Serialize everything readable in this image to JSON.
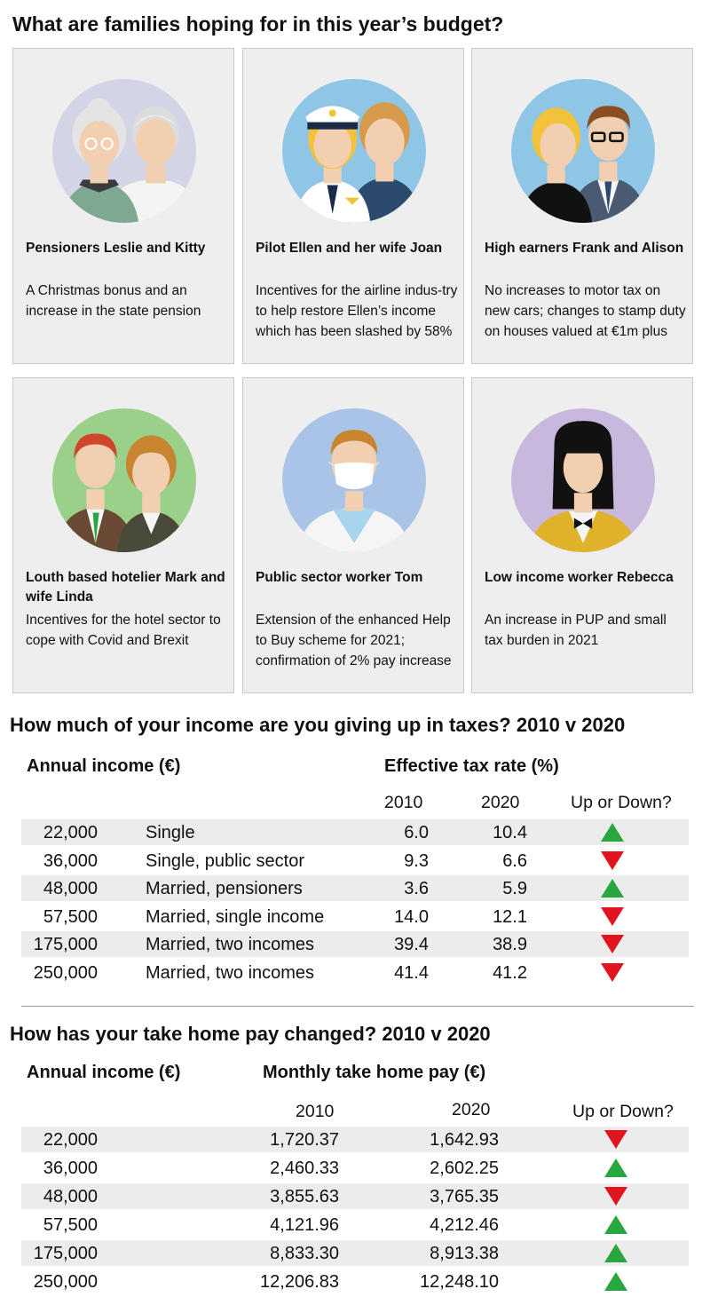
{
  "title": "What are families hoping for in this year’s budget?",
  "families": [
    {
      "name": "Pensioners Leslie and Kitty",
      "desc": "A Christmas bonus and an increase in the state pension"
    },
    {
      "name": "Pilot Ellen and her wife Joan",
      "desc": "Incentives for the airline indus-try to help restore Ellen’s income which has been slashed by 58%"
    },
    {
      "name": "High earners Frank and Alison",
      "desc": "No increases to motor tax on new cars; changes to stamp duty on houses valued at €1m plus"
    },
    {
      "name": "Louth based hotelier Mark and wife Linda",
      "desc": "Incentives for the hotel sector to cope with Covid and Brexit"
    },
    {
      "name": "Public sector worker Tom",
      "desc": "Extension of the enhanced Help to Buy scheme for 2021; confirmation of 2% pay increase"
    },
    {
      "name": "Low income worker Rebecca",
      "desc": "An increase in PUP and small tax burden in 2021"
    }
  ],
  "tax_table": {
    "title": "How much of your income are you giving up in taxes? 2010 v 2020",
    "col_income": "Annual income (€)",
    "col_rate": "Effective tax rate (%)",
    "year1": "2010",
    "year2": "2020",
    "col_trend": "Up or Down?",
    "rows": [
      {
        "income": "22,000",
        "type": "Single",
        "y2010": "6.0",
        "y2020": "10.4",
        "trend": "up"
      },
      {
        "income": "36,000",
        "type": "Single, public sector",
        "y2010": "9.3",
        "y2020": "6.6",
        "trend": "down"
      },
      {
        "income": "48,000",
        "type": "Married, pensioners",
        "y2010": "3.6",
        "y2020": "5.9",
        "trend": "up"
      },
      {
        "income": "57,500",
        "type": "Married, single income",
        "y2010": "14.0",
        "y2020": "12.1",
        "trend": "down"
      },
      {
        "income": "175,000",
        "type": "Married, two incomes",
        "y2010": "39.4",
        "y2020": "38.9",
        "trend": "down"
      },
      {
        "income": "250,000",
        "type": "Married, two incomes",
        "y2010": "41.4",
        "y2020": "41.2",
        "trend": "down"
      }
    ]
  },
  "pay_table": {
    "title": "How has your take home pay changed? 2010 v 2020",
    "col_income": "Annual income (€)",
    "col_pay": "Monthly take home pay (€)",
    "year1": "2010",
    "year2": "2020",
    "col_trend": "Up or Down?",
    "rows": [
      {
        "income": "22,000",
        "y2010": "1,720.37",
        "y2020": "1,642.93",
        "trend": "down"
      },
      {
        "income": "36,000",
        "y2010": "2,460.33",
        "y2020": "2,602.25",
        "trend": "up"
      },
      {
        "income": "48,000",
        "y2010": "3,855.63",
        "y2020": "3,765.35",
        "trend": "down"
      },
      {
        "income": "57,500",
        "y2010": "4,121.96",
        "y2020": "4,212.46",
        "trend": "up"
      },
      {
        "income": "175,000",
        "y2010": "8,833.30",
        "y2020": "8,913.38",
        "trend": "up"
      },
      {
        "income": "250,000",
        "y2010": "12,206.83",
        "y2020": "12,248.10",
        "trend": "up"
      }
    ]
  },
  "colors": {
    "up": "#2aa640",
    "down": "#e0151f",
    "card_bg": "#eeeeee",
    "row_shade": "#ececec"
  }
}
